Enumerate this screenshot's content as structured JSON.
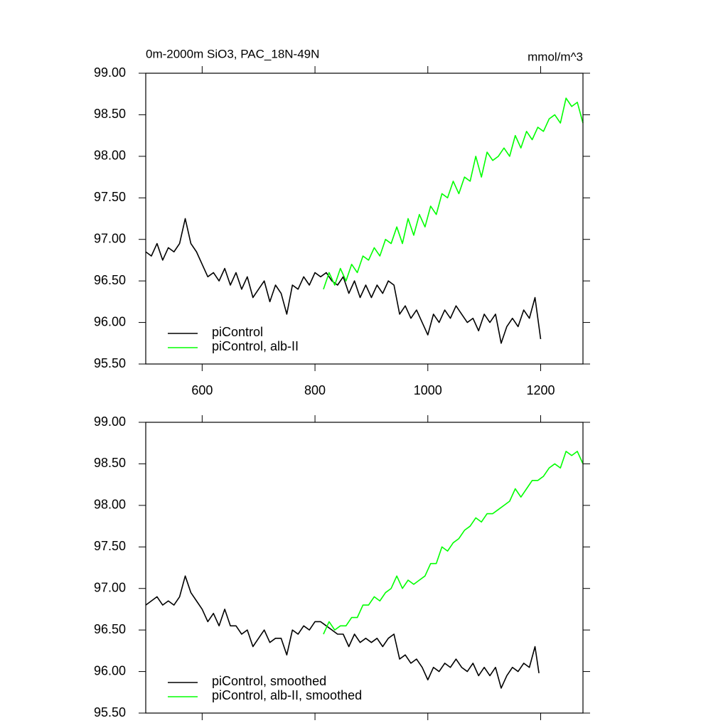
{
  "chart_data": [
    {
      "type": "line",
      "title": "0m-2000m SiO3, PAC_18N-49N",
      "units": "mmol/m^3",
      "xlim": [
        500,
        1275
      ],
      "xticks": [
        600,
        800,
        1000,
        1200
      ],
      "show_xtick_labels": true,
      "ylim": [
        95.5,
        99
      ],
      "yticks": [
        {
          "value": 95.5,
          "label": "95.50"
        },
        {
          "value": 96,
          "label": "96.00"
        },
        {
          "value": 96.5,
          "label": "96.50"
        },
        {
          "value": 97,
          "label": "97.00"
        },
        {
          "value": 97.5,
          "label": "97.50"
        },
        {
          "value": 98,
          "label": "98.00"
        },
        {
          "value": 98.5,
          "label": "98.50"
        },
        {
          "value": 99,
          "label": "99.00"
        }
      ],
      "legend": "lower left",
      "series": [
        {
          "name": "piControl",
          "color": "#000000",
          "x": [
            500,
            510,
            520,
            530,
            540,
            550,
            560,
            570,
            580,
            590,
            600,
            610,
            620,
            630,
            640,
            650,
            660,
            670,
            680,
            690,
            700,
            710,
            720,
            730,
            740,
            750,
            760,
            770,
            780,
            790,
            800,
            810,
            820,
            830,
            840,
            850,
            860,
            870,
            880,
            890,
            900,
            910,
            920,
            930,
            940,
            950,
            960,
            970,
            980,
            990,
            1000,
            1010,
            1020,
            1030,
            1040,
            1050,
            1060,
            1070,
            1080,
            1090,
            1100,
            1110,
            1120,
            1130,
            1140,
            1150,
            1160,
            1170,
            1180,
            1190,
            1200
          ],
          "values": [
            96.85,
            96.8,
            96.95,
            96.75,
            96.9,
            96.85,
            96.95,
            97.25,
            96.95,
            96.85,
            96.7,
            96.55,
            96.6,
            96.5,
            96.65,
            96.45,
            96.6,
            96.4,
            96.55,
            96.3,
            96.4,
            96.5,
            96.25,
            96.45,
            96.35,
            96.1,
            96.45,
            96.4,
            96.55,
            96.45,
            96.6,
            96.55,
            96.6,
            96.5,
            96.45,
            96.55,
            96.35,
            96.5,
            96.3,
            96.45,
            96.3,
            96.45,
            96.35,
            96.5,
            96.45,
            96.1,
            96.2,
            96.05,
            96.15,
            96.0,
            95.85,
            96.1,
            96.0,
            96.15,
            96.05,
            96.2,
            96.1,
            96.0,
            96.05,
            95.9,
            96.1,
            96.0,
            96.1,
            95.75,
            95.95,
            96.05,
            95.95,
            96.15,
            96.05,
            96.3,
            95.8
          ]
        },
        {
          "name": "piControl, alb-II",
          "color": "#00ff00",
          "x": [
            815,
            825,
            835,
            845,
            855,
            865,
            875,
            885,
            895,
            905,
            915,
            925,
            935,
            945,
            955,
            965,
            975,
            985,
            995,
            1005,
            1015,
            1025,
            1035,
            1045,
            1055,
            1065,
            1075,
            1085,
            1095,
            1105,
            1115,
            1125,
            1135,
            1145,
            1155,
            1165,
            1175,
            1185,
            1195,
            1205,
            1215,
            1225,
            1235,
            1245,
            1255,
            1265,
            1275
          ],
          "values": [
            96.4,
            96.6,
            96.45,
            96.65,
            96.5,
            96.7,
            96.6,
            96.8,
            96.75,
            96.9,
            96.8,
            97.0,
            96.95,
            97.15,
            96.95,
            97.25,
            97.05,
            97.3,
            97.15,
            97.4,
            97.3,
            97.55,
            97.5,
            97.7,
            97.55,
            97.75,
            97.7,
            98.0,
            97.75,
            98.05,
            97.95,
            98.0,
            98.1,
            98.0,
            98.25,
            98.1,
            98.3,
            98.2,
            98.35,
            98.3,
            98.45,
            98.5,
            98.4,
            98.7,
            98.6,
            98.65,
            98.4
          ]
        }
      ]
    },
    {
      "type": "line",
      "xlim": [
        500,
        1275
      ],
      "xticks": [
        600,
        800,
        1000,
        1200
      ],
      "show_xtick_labels": false,
      "ylim": [
        95.5,
        99
      ],
      "yticks": [
        {
          "value": 95.5,
          "label": "95.50"
        },
        {
          "value": 96,
          "label": "96.00"
        },
        {
          "value": 96.5,
          "label": "96.50"
        },
        {
          "value": 97,
          "label": "97.00"
        },
        {
          "value": 97.5,
          "label": "97.50"
        },
        {
          "value": 98,
          "label": "98.00"
        },
        {
          "value": 98.5,
          "label": "98.50"
        },
        {
          "value": 99,
          "label": "99.00"
        }
      ],
      "legend": "lower left",
      "series": [
        {
          "name": "piControl, smoothed",
          "color": "#000000",
          "x": [
            500,
            510,
            520,
            530,
            540,
            550,
            560,
            570,
            580,
            590,
            600,
            610,
            620,
            630,
            640,
            650,
            660,
            670,
            680,
            690,
            700,
            710,
            720,
            730,
            740,
            750,
            760,
            770,
            780,
            790,
            800,
            810,
            820,
            830,
            840,
            850,
            860,
            870,
            880,
            890,
            900,
            910,
            920,
            930,
            940,
            950,
            960,
            970,
            980,
            990,
            1000,
            1010,
            1020,
            1030,
            1040,
            1050,
            1060,
            1070,
            1080,
            1090,
            1100,
            1110,
            1120,
            1130,
            1140,
            1150,
            1160,
            1170,
            1180,
            1190,
            1197
          ],
          "values": [
            96.8,
            96.85,
            96.9,
            96.8,
            96.85,
            96.8,
            96.9,
            97.15,
            96.95,
            96.85,
            96.75,
            96.6,
            96.7,
            96.55,
            96.75,
            96.55,
            96.55,
            96.45,
            96.5,
            96.3,
            96.4,
            96.5,
            96.35,
            96.4,
            96.4,
            96.2,
            96.5,
            96.45,
            96.55,
            96.5,
            96.6,
            96.6,
            96.55,
            96.5,
            96.45,
            96.45,
            96.3,
            96.45,
            96.35,
            96.4,
            96.35,
            96.4,
            96.3,
            96.4,
            96.45,
            96.15,
            96.2,
            96.1,
            96.15,
            96.05,
            95.9,
            96.05,
            96.0,
            96.1,
            96.05,
            96.15,
            96.05,
            96.0,
            96.1,
            95.95,
            96.05,
            95.95,
            96.05,
            95.8,
            95.95,
            96.05,
            96.0,
            96.1,
            96.05,
            96.3,
            95.98
          ]
        },
        {
          "name": "piControl, alb-II, smoothed",
          "color": "#00ff00",
          "x": [
            815,
            825,
            835,
            845,
            855,
            865,
            875,
            885,
            895,
            905,
            915,
            925,
            935,
            945,
            955,
            965,
            975,
            985,
            995,
            1005,
            1015,
            1025,
            1035,
            1045,
            1055,
            1065,
            1075,
            1085,
            1095,
            1105,
            1115,
            1125,
            1135,
            1145,
            1155,
            1165,
            1175,
            1185,
            1195,
            1205,
            1215,
            1225,
            1235,
            1245,
            1255,
            1265,
            1275
          ],
          "values": [
            96.45,
            96.6,
            96.5,
            96.55,
            96.55,
            96.65,
            96.65,
            96.8,
            96.8,
            96.9,
            96.85,
            96.95,
            97.0,
            97.15,
            97.0,
            97.1,
            97.05,
            97.1,
            97.15,
            97.3,
            97.3,
            97.5,
            97.45,
            97.55,
            97.6,
            97.7,
            97.75,
            97.85,
            97.8,
            97.9,
            97.9,
            97.95,
            98.0,
            98.05,
            98.2,
            98.1,
            98.2,
            98.3,
            98.3,
            98.35,
            98.45,
            98.5,
            98.45,
            98.65,
            98.6,
            98.65,
            98.5
          ]
        }
      ]
    }
  ]
}
